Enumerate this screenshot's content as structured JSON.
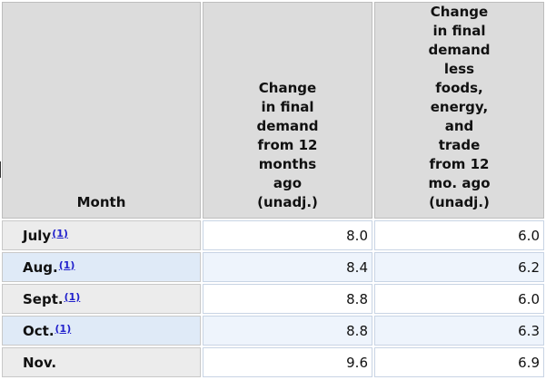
{
  "table": {
    "headers": {
      "month": "Month",
      "col1": "Change in final demand from 12 months ago (unadj.)",
      "col2": "Change in final demand less foods, energy, and trade from 12 mo. ago (unadj.)"
    },
    "rows": [
      {
        "month": "July",
        "footnote": "(1)",
        "col1": "8.0",
        "col2": "6.0"
      },
      {
        "month": "Aug.",
        "footnote": "(1)",
        "col1": "8.4",
        "col2": "6.2"
      },
      {
        "month": "Sept.",
        "footnote": "(1)",
        "col1": "8.8",
        "col2": "6.0"
      },
      {
        "month": "Oct.",
        "footnote": "(1)",
        "col1": "8.8",
        "col2": "6.3"
      },
      {
        "month": "Nov.",
        "footnote": "",
        "col1": "9.6",
        "col2": "6.9"
      }
    ]
  },
  "colors": {
    "header_bg": "#dcdcdc",
    "alt_row_bg": "#dfeaf7",
    "link": "#2222cc"
  }
}
